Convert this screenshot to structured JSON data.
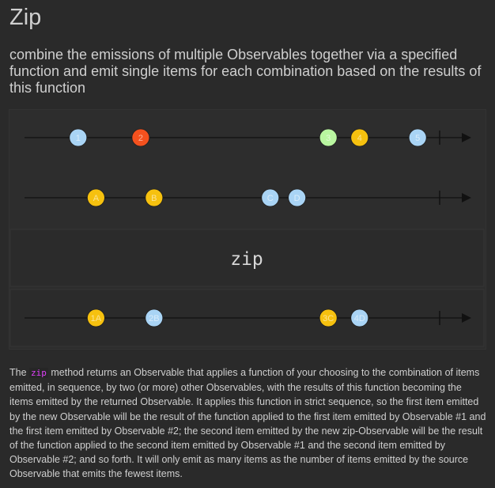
{
  "header": {
    "title": "Zip",
    "subtitle": "combine the emissions of multiple Observables together via a specified function and emit single items for each combination based on the results of this function"
  },
  "diagram": {
    "operator_label": "zip",
    "timelines": [
      {
        "name": "source-1",
        "items": [
          {
            "label": "1",
            "t": 0.12,
            "color": "#a9d4f5"
          },
          {
            "label": "2",
            "t": 0.26,
            "color": "#f4511e"
          },
          {
            "label": "3",
            "t": 0.68,
            "color": "#b9f6a0"
          },
          {
            "label": "4",
            "t": 0.75,
            "color": "#f6c10f"
          },
          {
            "label": "5",
            "t": 0.88,
            "color": "#a9d4f5"
          }
        ]
      },
      {
        "name": "source-2",
        "items": [
          {
            "label": "A",
            "t": 0.16,
            "color": "#f6c10f"
          },
          {
            "label": "B",
            "t": 0.29,
            "color": "#f6c10f"
          },
          {
            "label": "C",
            "t": 0.55,
            "color": "#a9d4f5"
          },
          {
            "label": "D",
            "t": 0.61,
            "color": "#a9d4f5"
          }
        ]
      },
      {
        "name": "result",
        "items": [
          {
            "label": "1A",
            "t": 0.16,
            "color": "#f6c10f"
          },
          {
            "label": "2B",
            "t": 0.29,
            "color": "#a9d4f5"
          },
          {
            "label": "3C",
            "t": 0.68,
            "color": "#f6c10f"
          },
          {
            "label": "4D",
            "t": 0.75,
            "color": "#a9d4f5"
          }
        ]
      }
    ]
  },
  "description": {
    "prefix": "The ",
    "code": "zip",
    "text": " method returns an Observable that applies a function of your choosing to the combination of items emitted, in sequence, by two (or more) other Observables, with the results of this function becoming the items emitted by the returned Observable. It applies this function in strict sequence, so the first item emitted by the new Observable will be the result of the function applied to the first item emitted by Observable #1 and the first item emitted by Observable #2; the second item emitted by the new zip-Observable will be the result of the function applied to the second item emitted by Observable #1 and the second item emitted by Observable #2; and so forth. It will only emit as many items as the number of items emitted by the source Observable that emits the fewest items."
  }
}
